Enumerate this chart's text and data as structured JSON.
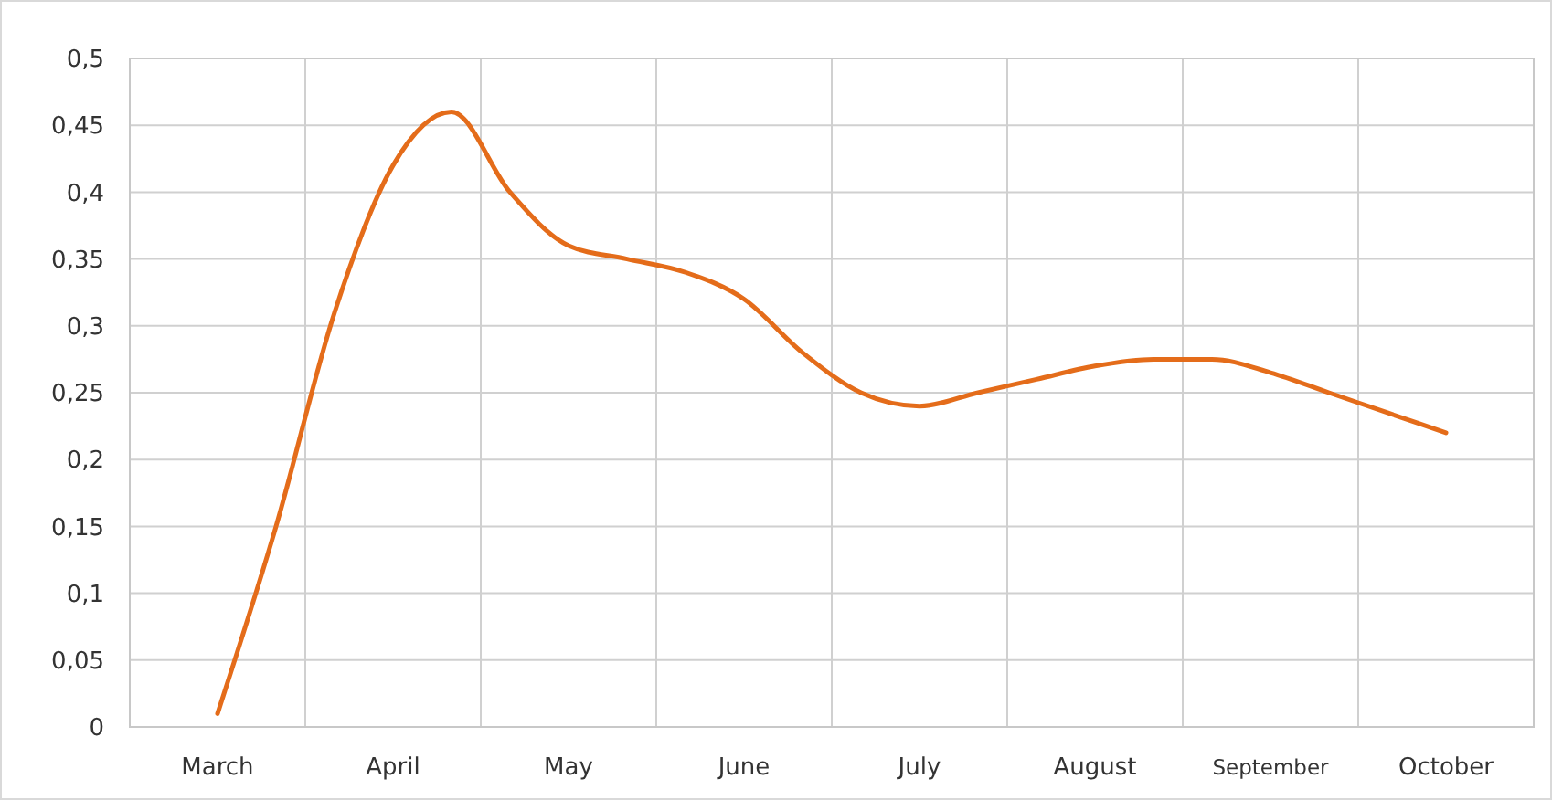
{
  "chart_data": {
    "type": "line",
    "categories": [
      null,
      "March",
      null,
      null,
      "April",
      null,
      null,
      "May",
      null,
      null,
      "June",
      null,
      null,
      "July",
      null,
      null,
      "August",
      null,
      null,
      "September",
      null,
      null,
      "October",
      null
    ],
    "ylim": [
      0,
      0.5
    ],
    "yticks": [
      {
        "value": 0,
        "label": "0"
      },
      {
        "value": 0.05,
        "label": "0,05"
      },
      {
        "value": 0.1,
        "label": "0,1"
      },
      {
        "value": 0.15,
        "label": "0,15"
      },
      {
        "value": 0.2,
        "label": "0,2"
      },
      {
        "value": 0.25,
        "label": "0,25"
      },
      {
        "value": 0.3,
        "label": "0,3"
      },
      {
        "value": 0.35,
        "label": "0,35"
      },
      {
        "value": 0.4,
        "label": "0,4"
      },
      {
        "value": 0.45,
        "label": "0,45"
      },
      {
        "value": 0.5,
        "label": "0,5"
      }
    ],
    "grid": true,
    "marker": "none",
    "line_style": "solid",
    "series": [
      {
        "color": "#e46c1a",
        "values": [
          null,
          0.01,
          0.15,
          0.31,
          0.42,
          0.46,
          0.4,
          0.36,
          0.35,
          0.34,
          0.32,
          0.28,
          0.25,
          0.24,
          0.25,
          0.26,
          0.27,
          0.275,
          0.275,
          0.265,
          0.25,
          0.235,
          0.22,
          null
        ]
      }
    ]
  }
}
